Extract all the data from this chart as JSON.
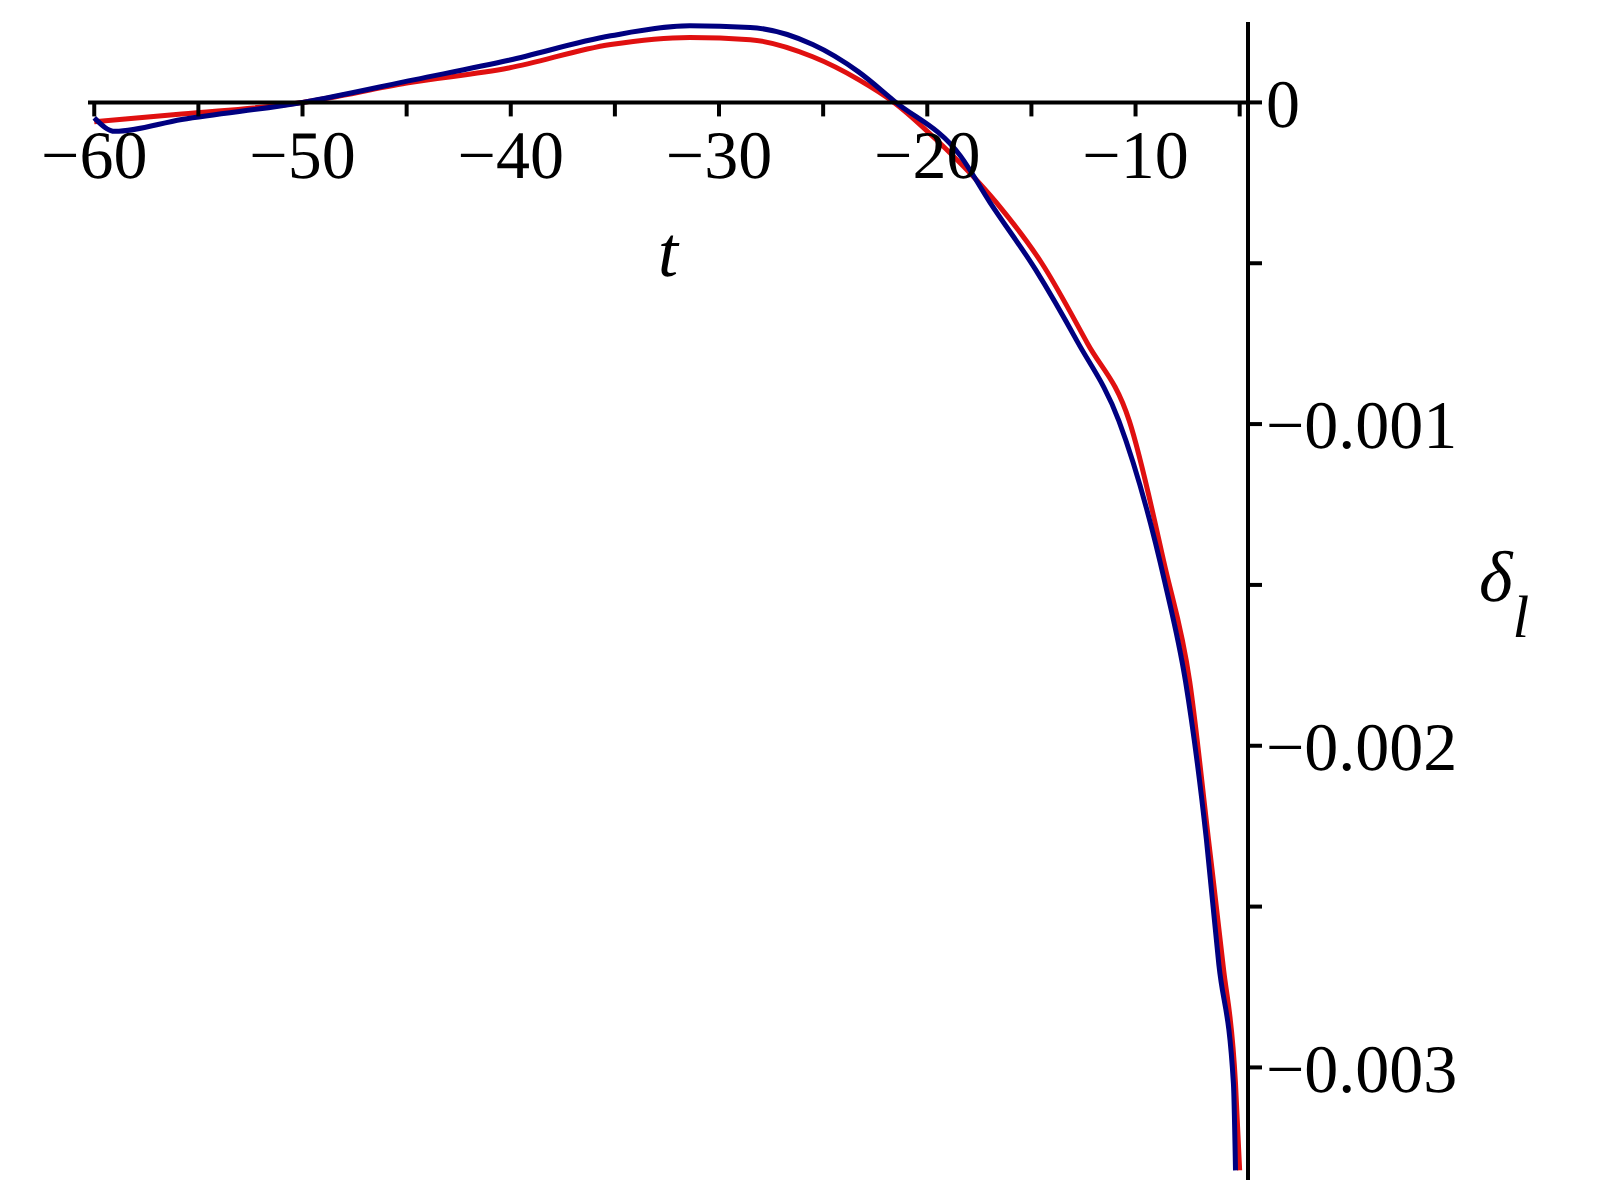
{
  "chart_data": {
    "type": "line",
    "xlabel": "t",
    "ylabel": "δ$_{l}$",
    "xlim": [
      -60.3,
      -4.6
    ],
    "ylim": [
      -0.00335,
      0.00025
    ],
    "xticks": [
      {
        "value": -60,
        "label": "−60"
      },
      {
        "value": -55,
        "label": null
      },
      {
        "value": -50,
        "label": "−50"
      },
      {
        "value": -45,
        "label": null
      },
      {
        "value": -40,
        "label": "−40"
      },
      {
        "value": -35,
        "label": null
      },
      {
        "value": -30,
        "label": "−30"
      },
      {
        "value": -25,
        "label": null
      },
      {
        "value": -20,
        "label": "−20"
      },
      {
        "value": -15,
        "label": null
      },
      {
        "value": -10,
        "label": "−10"
      },
      {
        "value": -5,
        "label": null
      }
    ],
    "yticks": [
      {
        "value": 0,
        "label": "0"
      },
      {
        "value": -0.0005,
        "label": null
      },
      {
        "value": -0.001,
        "label": "−0.001"
      },
      {
        "value": -0.0015,
        "label": null
      },
      {
        "value": -0.002,
        "label": "−0.002"
      },
      {
        "value": -0.0025,
        "label": null
      },
      {
        "value": -0.003,
        "label": "−0.003"
      }
    ],
    "marker": "none",
    "line_style": "solid",
    "legend": false,
    "series": [
      {
        "color": "#e01010",
        "x": [
          -60,
          -55.8,
          -50,
          -45,
          -40.1,
          -35.2,
          -31.4,
          -28.5,
          -25.5,
          -23.3,
          -21.6,
          -19.5,
          -16.7,
          -14.5,
          -12.3,
          -10.3,
          -8.6,
          -7.4,
          -6.5,
          -5.8,
          -5.2,
          -5.0
        ],
        "values": [
          -6e-05,
          -3.6e-05,
          0,
          6e-05,
          0.000107,
          0.00018,
          0.000202,
          0.000195,
          0.000142,
          7.1e-05,
          0,
          -0.00012,
          -0.00031,
          -0.0005,
          -0.00075,
          -0.00099,
          -0.00144,
          -0.0018,
          -0.00229,
          -0.00268,
          -0.00305,
          -0.00332
        ]
      },
      {
        "color": "#000080",
        "x": [
          -60,
          -59,
          -55.8,
          -50,
          -44.6,
          -40.1,
          -35.2,
          -31.4,
          -28.5,
          -25.5,
          -23.3,
          -21.6,
          -18.4,
          -17.0,
          -14.8,
          -12.8,
          -10.8,
          -8.6,
          -7.6,
          -6.6,
          -6.0,
          -5.3,
          -5.2
        ],
        "values": [
          -4.8e-05,
          -9e-05,
          -5.3e-05,
          0,
          7.1e-05,
          0.000131,
          0.000207,
          0.000238,
          0.000233,
          0.00018,
          9.5e-05,
          5e-06,
          -0.000167,
          -0.00031,
          -0.00052,
          -0.000743,
          -0.00099,
          -0.00149,
          -0.0018,
          -0.00229,
          -0.00268,
          -0.00305,
          -0.00332
        ]
      }
    ]
  }
}
